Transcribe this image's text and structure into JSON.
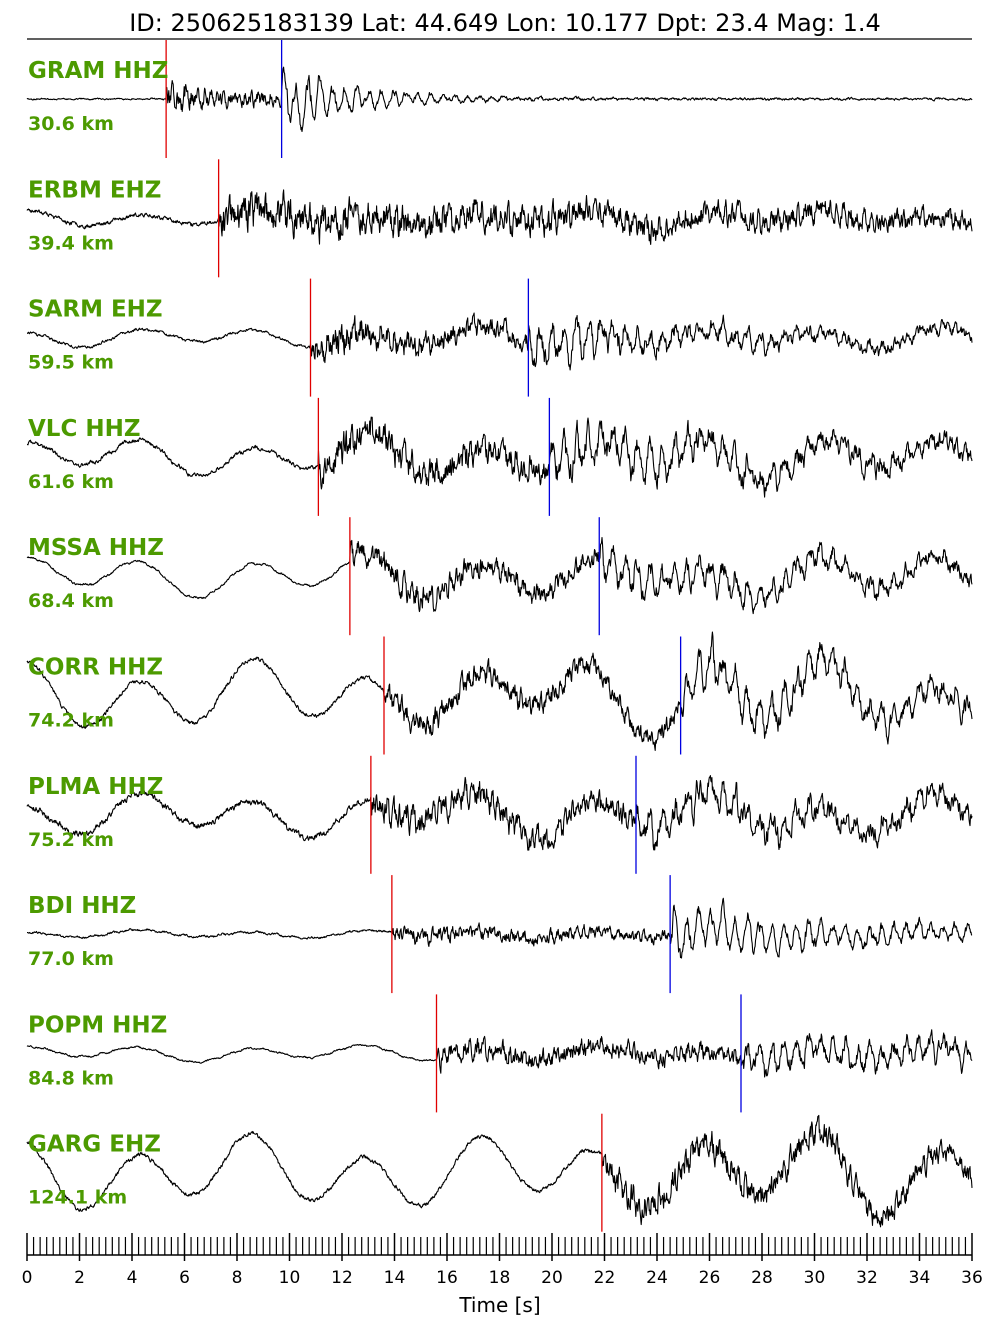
{
  "header": {
    "title": "ID: 250625183139 Lat:  44.649 Lon:  10.177 Dpt:    23.4 Mag:   1.4"
  },
  "colors": {
    "label": "#4c9a00",
    "trace": "#000000",
    "p_pick": "#e00000",
    "s_pick": "#0000e0"
  },
  "chart_data": {
    "type": "line",
    "xlabel": "Time [s]",
    "xlim": [
      0,
      36
    ],
    "xticks": [
      0,
      2,
      4,
      6,
      8,
      10,
      12,
      14,
      16,
      18,
      20,
      22,
      24,
      26,
      28,
      30,
      32,
      34,
      36
    ],
    "minor_tick_step": 0.25,
    "traces": [
      {
        "station": "GRAM HHZ",
        "distance": "30.6 km",
        "p_time": 5.3,
        "s_time": 9.7,
        "style": 0
      },
      {
        "station": "ERBM EHZ",
        "distance": "39.4 km",
        "p_time": 7.3,
        "s_time": null,
        "style": 1
      },
      {
        "station": "SARM EHZ",
        "distance": "59.5 km",
        "p_time": 10.8,
        "s_time": 19.1,
        "style": 2
      },
      {
        "station": "VLC HHZ",
        "distance": "61.6 km",
        "p_time": 11.1,
        "s_time": 19.9,
        "style": 3
      },
      {
        "station": "MSSA HHZ",
        "distance": "68.4 km",
        "p_time": 12.3,
        "s_time": 21.8,
        "style": 4
      },
      {
        "station": "CORR HHZ",
        "distance": "74.2 km",
        "p_time": 13.6,
        "s_time": 24.9,
        "style": 5
      },
      {
        "station": "PLMA HHZ",
        "distance": "75.2 km",
        "p_time": 13.1,
        "s_time": 23.2,
        "style": 6
      },
      {
        "station": "BDI HHZ",
        "distance": "77.0 km",
        "p_time": 13.9,
        "s_time": 24.5,
        "style": 7
      },
      {
        "station": "POPM HHZ",
        "distance": "84.8 km",
        "p_time": 15.6,
        "s_time": 27.2,
        "style": 8
      },
      {
        "station": "GARG EHZ",
        "distance": "124.1 km",
        "p_time": 21.9,
        "s_time": null,
        "style": 9
      }
    ]
  }
}
